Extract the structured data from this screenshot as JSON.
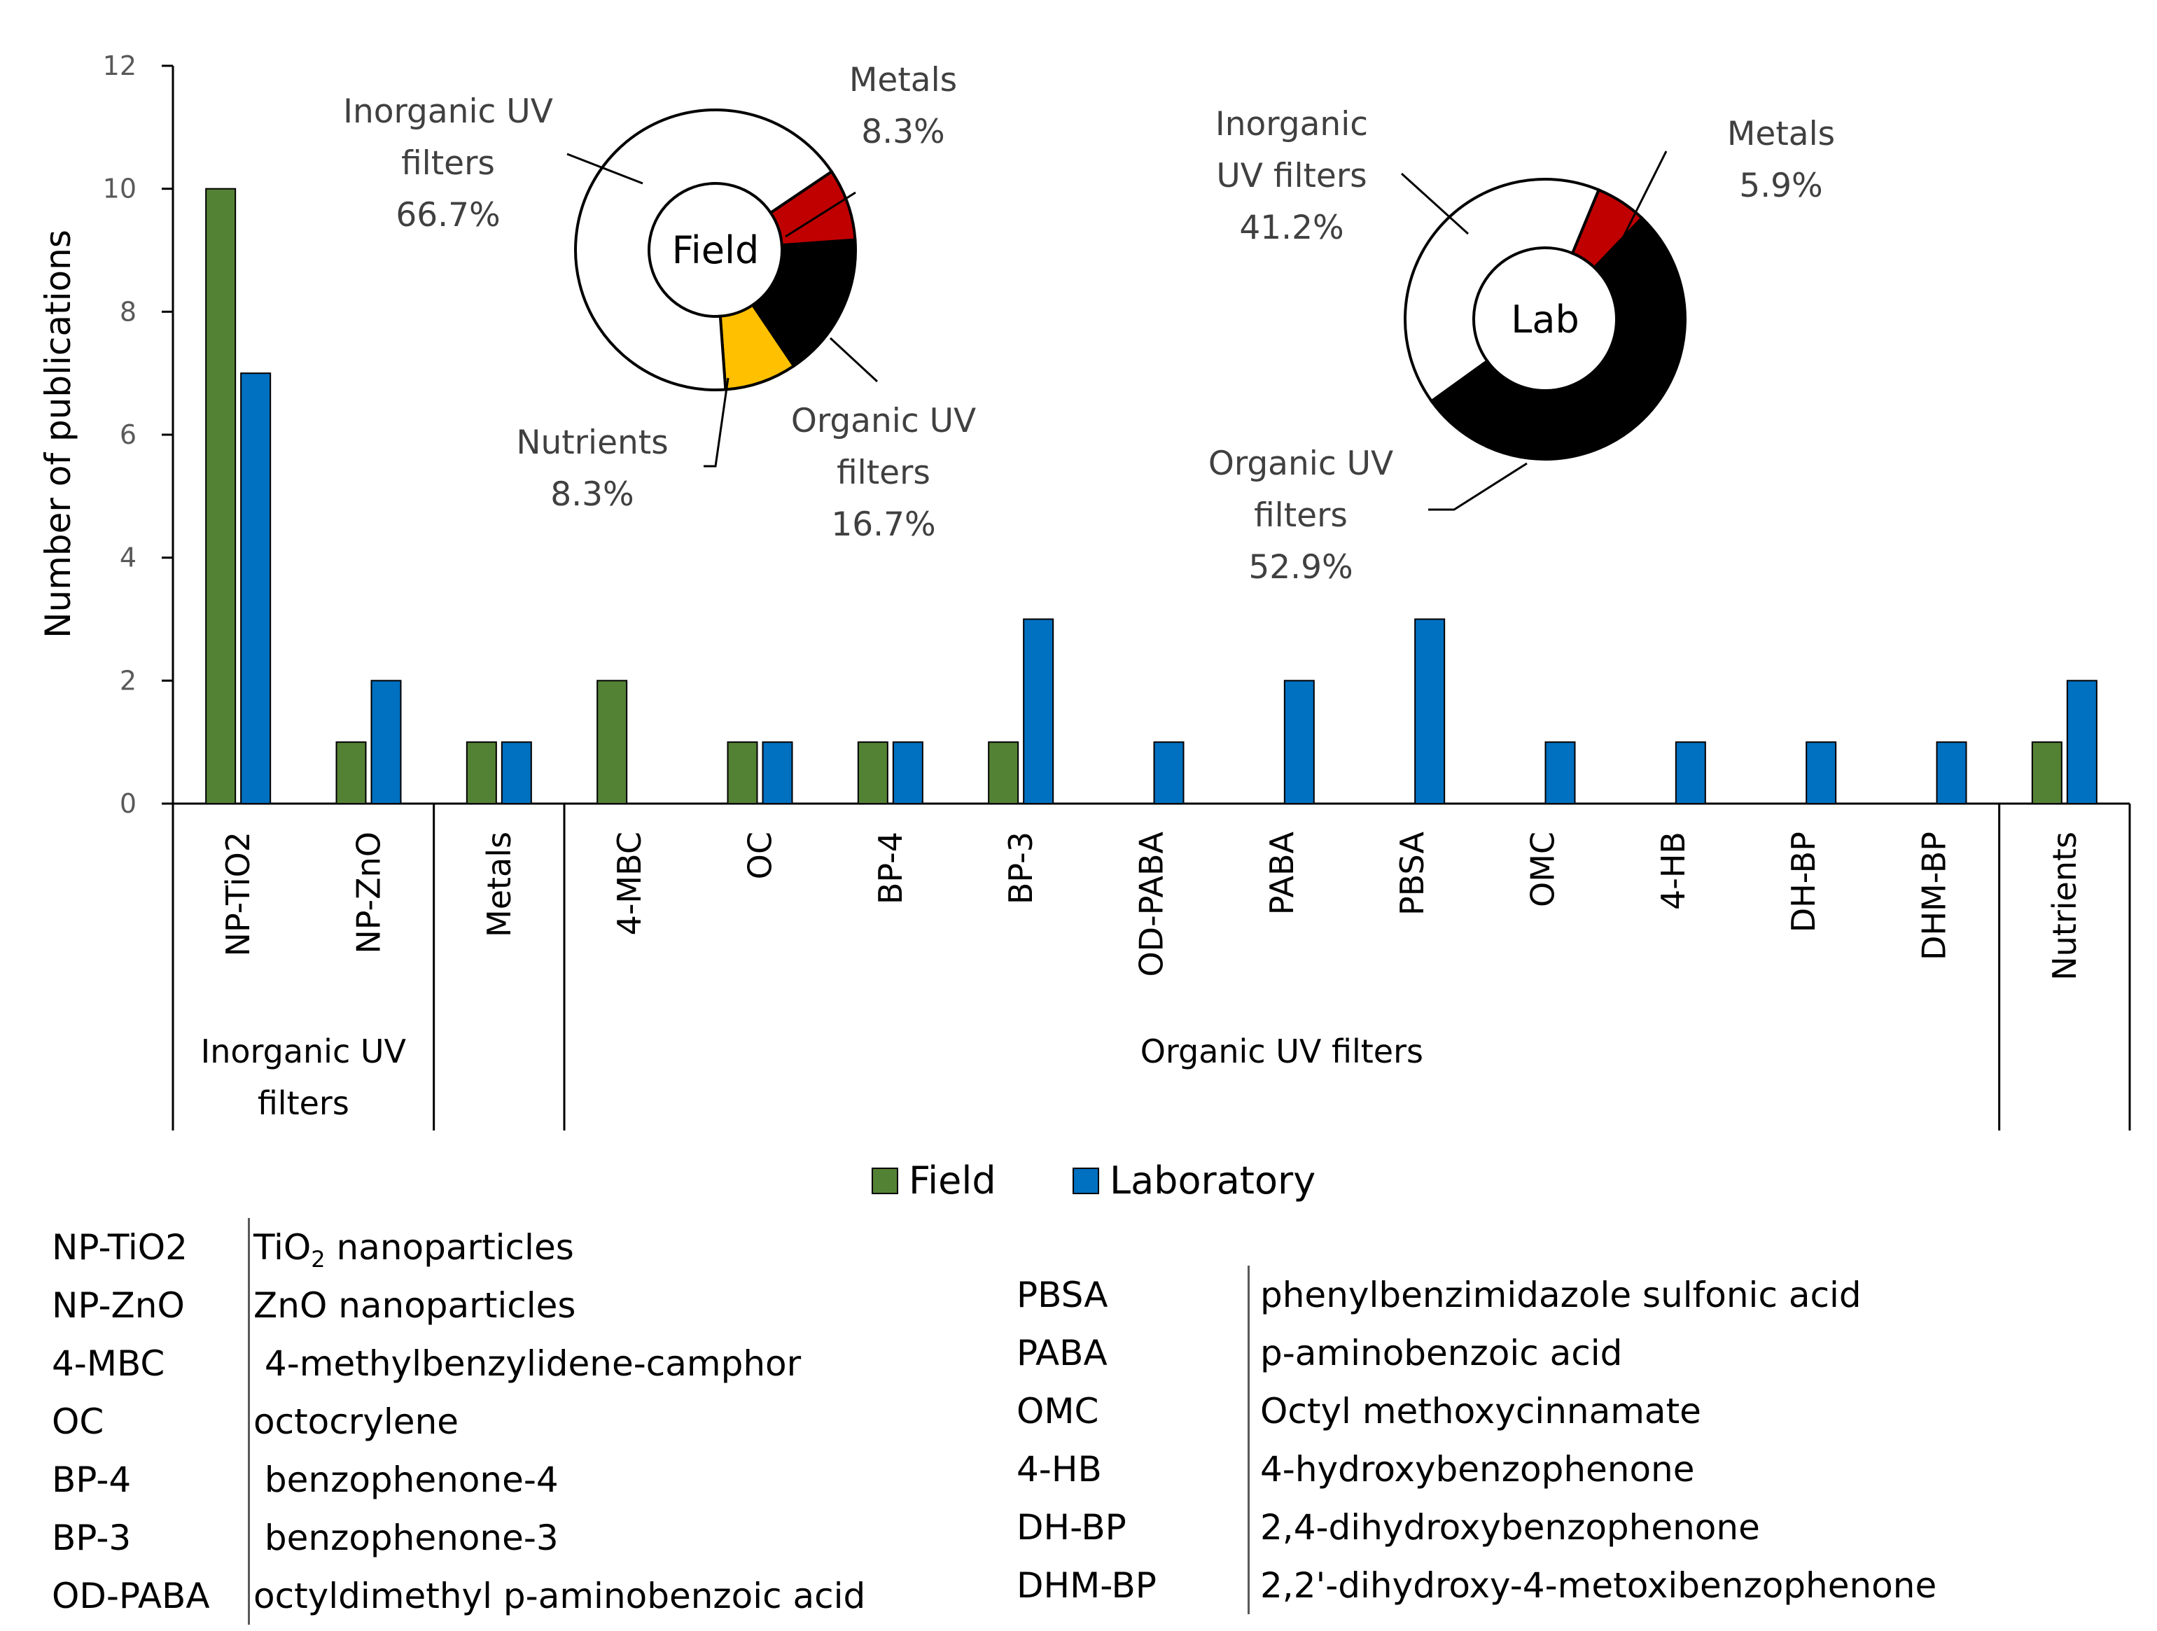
{
  "chart_data": {
    "type": "bar",
    "ylabel": "Number of publications",
    "ylim": [
      0,
      12
    ],
    "yticks": [
      "0",
      "2",
      "4",
      "6",
      "8",
      "10",
      "12"
    ],
    "categories": [
      "NP-TiO2",
      "NP-ZnO",
      "Metals",
      "4-MBC",
      "OC",
      "BP-4",
      "BP-3",
      "OD-PABA",
      "PABA",
      "PBSA",
      "OMC",
      "4-HB",
      "DH-BP",
      "DHM-BP",
      "Nutrients"
    ],
    "series": [
      {
        "name": "Field",
        "color": "#548235",
        "values": [
          10,
          1,
          1,
          2,
          1,
          1,
          1,
          0,
          0,
          0,
          0,
          0,
          0,
          0,
          1
        ]
      },
      {
        "name": "Laboratory",
        "color": "#0070C0",
        "values": [
          7,
          2,
          1,
          0,
          1,
          1,
          3,
          1,
          2,
          3,
          1,
          1,
          1,
          1,
          2
        ]
      }
    ],
    "groups": [
      {
        "label": [
          "Inorganic UV",
          "filters"
        ],
        "start": 0,
        "end": 1
      },
      {
        "label": [
          "",
          ""
        ],
        "start": 2,
        "end": 2
      },
      {
        "label": [
          "Organic UV filters",
          ""
        ],
        "start": 3,
        "end": 13
      },
      {
        "label": [
          "",
          ""
        ],
        "start": 14,
        "end": 14
      }
    ],
    "legend_position": "bottom",
    "donuts": [
      {
        "center_label": "Field",
        "slices": [
          {
            "label": [
              "Metals",
              "8.3%"
            ],
            "value": 8.3,
            "color": "#C00000"
          },
          {
            "label": [
              "Organic UV",
              "filters",
              "16.7%"
            ],
            "value": 16.7,
            "color": "#000000"
          },
          {
            "label": [
              "Nutrients",
              "8.3%"
            ],
            "value": 8.3,
            "color": "#FFC000"
          },
          {
            "label": [
              "Inorganic UV",
              "filters",
              "66.7%"
            ],
            "value": 66.7,
            "color": "#FFFFFF"
          }
        ]
      },
      {
        "center_label": "Lab",
        "slices": [
          {
            "label": [
              "Metals",
              "5.9%"
            ],
            "value": 5.9,
            "color": "#C00000"
          },
          {
            "label": [
              "Organic UV",
              "filters",
              "52.9%"
            ],
            "value": 52.9,
            "color": "#000000"
          },
          {
            "label": [
              "Inorganic",
              "UV filters",
              "41.2%"
            ],
            "value": 41.2,
            "color": "#FFFFFF"
          }
        ]
      }
    ]
  },
  "glossary_left": [
    {
      "abbr": "NP-TiO2",
      "def_main": "TiO",
      "def_sub": "2",
      "def_rest": " nanoparticles"
    },
    {
      "abbr": "NP-ZnO",
      "def_main": "ZnO nanoparticles"
    },
    {
      "abbr": "4-MBC",
      "def_main": " 4-methylbenzylidene-camphor"
    },
    {
      "abbr": "OC",
      "def_main": "octocrylene"
    },
    {
      "abbr": "BP-4",
      "def_main": " benzophenone-4"
    },
    {
      "abbr": "BP-3",
      "def_main": " benzophenone-3"
    },
    {
      "abbr": "OD-PABA",
      "def_main": "octyldimethyl p-aminobenzoic acid"
    }
  ],
  "glossary_right": [
    {
      "abbr": "PBSA",
      "def_main": "phenylbenzimidazole sulfonic acid"
    },
    {
      "abbr": "PABA",
      "def_main": "p-aminobenzoic acid"
    },
    {
      "abbr": "OMC",
      "def_main": "Octyl methoxycinnamate"
    },
    {
      "abbr": "4-HB",
      "def_main": "4-hydroxybenzophenone"
    },
    {
      "abbr": "DH-BP",
      "def_main": "2,4-dihydroxybenzophenone"
    },
    {
      "abbr": "DHM-BP",
      "def_main": "2,2'-dihydroxy-4-metoxibenzophenone"
    }
  ]
}
